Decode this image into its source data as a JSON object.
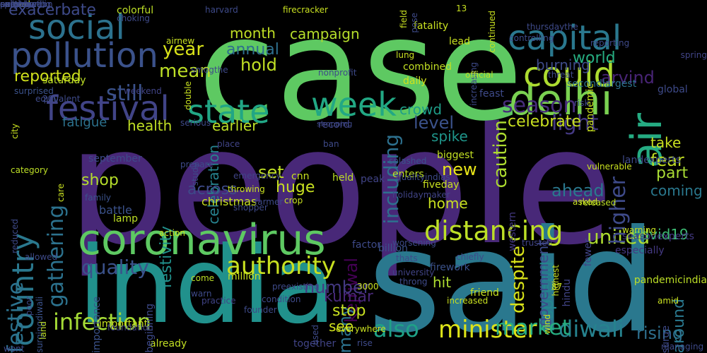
{
  "background": "#000000",
  "words": [
    {
      "text": "people",
      "color": "#482878"
    },
    {
      "text": "case",
      "color": "#5ec962"
    },
    {
      "text": "said",
      "color": "#2a788e"
    },
    {
      "text": "india",
      "color": "#21918c"
    },
    {
      "text": "coronavirus",
      "color": "#5ec962"
    },
    {
      "text": "pollution",
      "color": "#3b528b"
    },
    {
      "text": "social",
      "color": "#2c728e"
    },
    {
      "text": "festival",
      "color": "#414487"
    },
    {
      "text": "delhi",
      "color": "#7ad151"
    },
    {
      "text": "capital",
      "color": "#2a788e"
    },
    {
      "text": "could",
      "color": "#addc30"
    },
    {
      "text": "state",
      "color": "#21a685"
    },
    {
      "text": "week",
      "color": "#22a884"
    },
    {
      "text": "air",
      "color": "#25ab82"
    },
    {
      "text": "country",
      "color": "#2a788e"
    },
    {
      "text": "distancing",
      "color": "#bddf26"
    },
    {
      "text": "authority",
      "color": "#c8e020"
    },
    {
      "text": "minister",
      "color": "#dde318"
    },
    {
      "text": "infection",
      "color": "#a5db36"
    },
    {
      "text": "also",
      "color": "#1fa187"
    },
    {
      "text": "diwali",
      "color": "#26828e"
    },
    {
      "text": "market",
      "color": "#27ad81"
    },
    {
      "text": "festive",
      "color": "#2c728e"
    },
    {
      "text": "quality",
      "color": "#3b528b"
    },
    {
      "text": "united",
      "color": "#addc30"
    },
    {
      "text": "season",
      "color": "#472d7b"
    },
    {
      "text": "light",
      "color": "#443983"
    },
    {
      "text": "higher",
      "color": "#3e4a89"
    },
    {
      "text": "ahead",
      "color": "#2a788e"
    },
    {
      "text": "still",
      "color": "#3b528b"
    },
    {
      "text": "mean",
      "color": "#bddf26"
    },
    {
      "text": "year",
      "color": "#d8e219"
    },
    {
      "text": "world",
      "color": "#26ad81"
    },
    {
      "text": "arvind",
      "color": "#482475"
    },
    {
      "text": "month",
      "color": "#c0df25"
    },
    {
      "text": "campaign",
      "color": "#b5de2b"
    },
    {
      "text": "annual",
      "color": "#2e6f8e"
    },
    {
      "text": "hold",
      "color": "#c0df25"
    },
    {
      "text": "reported",
      "color": "#d0e11c"
    },
    {
      "text": "including",
      "color": "#2d708e"
    },
    {
      "text": "caution",
      "color": "#addc30"
    },
    {
      "text": "exacerbate",
      "color": "#3e4a89"
    },
    {
      "text": "crowd",
      "color": "#1f9e89"
    },
    {
      "text": "level",
      "color": "#3b528b"
    },
    {
      "text": "celebrate",
      "color": "#c8e020"
    },
    {
      "text": "burning",
      "color": "#3e4a89"
    },
    {
      "text": "celebration",
      "color": "#26828e"
    },
    {
      "text": "earlier",
      "color": "#bddf26"
    },
    {
      "text": "health",
      "color": "#c0df25"
    },
    {
      "text": "fatigue",
      "color": "#2c728e"
    },
    {
      "text": "gathering",
      "color": "#2c728e"
    },
    {
      "text": "spike",
      "color": "#1f968b"
    },
    {
      "text": "fear",
      "color": "#c2df23"
    },
    {
      "text": "take",
      "color": "#c8e020"
    },
    {
      "text": "part",
      "color": "#a8db34"
    },
    {
      "text": "set",
      "color": "#c0df25"
    },
    {
      "text": "new",
      "color": "#e7e419"
    },
    {
      "text": "despite",
      "color": "#d8e219"
    },
    {
      "text": "huge",
      "color": "#c8e020"
    },
    {
      "text": "across",
      "color": "#3e4a89"
    },
    {
      "text": "shop",
      "color": "#b5de2b"
    },
    {
      "text": "festivity",
      "color": "#21918c"
    },
    {
      "text": "coming",
      "color": "#2a788e"
    },
    {
      "text": "covid19",
      "color": "#3dbc74"
    },
    {
      "text": "home",
      "color": "#c8e020"
    },
    {
      "text": "spread",
      "color": "#24868e"
    },
    {
      "text": "kejriwal",
      "color": "#440154"
    },
    {
      "text": "number",
      "color": "#443983"
    },
    {
      "text": "kumar",
      "color": "#482878"
    },
    {
      "text": "many",
      "color": "#2c728e"
    },
    {
      "text": "hit",
      "color": "#addc30"
    },
    {
      "text": "stop",
      "color": "#c8e020"
    },
    {
      "text": "see",
      "color": "#d0e11c"
    },
    {
      "text": "rising",
      "color": "#2e6f8e"
    },
    {
      "text": "around",
      "color": "#2a788e"
    },
    {
      "text": "government",
      "color": "#3e4a89"
    },
    {
      "text": "christmas",
      "color": "#c8e020"
    },
    {
      "text": "battle",
      "color": "#3b528b"
    },
    {
      "text": "weekend",
      "color": "#414487"
    },
    {
      "text": "saturday",
      "color": "#bddf26"
    },
    {
      "text": "colorful",
      "color": "#bddf26"
    },
    {
      "text": "combined",
      "color": "#c2df23"
    },
    {
      "text": "fatality",
      "color": "#c8e020"
    },
    {
      "text": "daily",
      "color": "#d0e11c"
    },
    {
      "text": "lead",
      "color": "#c8e020"
    },
    {
      "text": "feast",
      "color": "#3e4a89"
    },
    {
      "text": "record",
      "color": "#414487"
    },
    {
      "text": "biggest",
      "color": "#c2df23"
    },
    {
      "text": "fiveday",
      "color": "#c8e020"
    },
    {
      "text": "enters",
      "color": "#bddf26"
    },
    {
      "text": "billion",
      "color": "#3b528b"
    },
    {
      "text": "factor",
      "color": "#3e4a89"
    },
    {
      "text": "firework",
      "color": "#3b528b"
    },
    {
      "text": "friend",
      "color": "#c8e020"
    },
    {
      "text": "million",
      "color": "#c8e020"
    },
    {
      "text": "together",
      "color": "#414487"
    },
    {
      "text": "already",
      "color": "#c2df23"
    },
    {
      "text": "important",
      "color": "#c8e020"
    },
    {
      "text": "importance",
      "color": "#3b528b"
    },
    {
      "text": "beginning",
      "color": "#3e4a89"
    },
    {
      "text": "september",
      "color": "#3e4a89"
    },
    {
      "text": "lamp",
      "color": "#bddf26"
    },
    {
      "text": "held",
      "color": "#bddf26"
    },
    {
      "text": "cnn",
      "color": "#c8e020"
    },
    {
      "text": "peak",
      "color": "#414487"
    },
    {
      "text": "western",
      "color": "#443983"
    },
    {
      "text": "secondlargest",
      "color": "#2c728e"
    },
    {
      "text": "global",
      "color": "#3e4a89"
    },
    {
      "text": "pandemic",
      "color": "#c8e020"
    },
    {
      "text": "landexperts",
      "color": "#3e4a89"
    },
    {
      "text": "seasonexperts",
      "color": "#443983"
    },
    {
      "text": "fewer",
      "color": "#414487"
    },
    {
      "text": "especially",
      "color": "#443983"
    },
    {
      "text": "hindu",
      "color": "#414487"
    },
    {
      "text": "pandemicindia",
      "color": "#bddf26"
    },
    {
      "text": "surge",
      "color": "#3e4a89"
    },
    {
      "text": "city",
      "color": "#c8e020"
    },
    {
      "text": "surprised",
      "color": "#3b528b"
    },
    {
      "text": "equivalent",
      "color": "#3e4a89"
    },
    {
      "text": "poor",
      "color": "#3e4a89"
    },
    {
      "text": "wont",
      "color": "#3e4a89"
    },
    {
      "text": "surgingdiwali",
      "color": "#3b528b"
    },
    {
      "text": "land",
      "color": "#bddf26"
    },
    {
      "text": "allowed",
      "color": "#3e4a89"
    },
    {
      "text": "reduced",
      "color": "#3e4a89"
    },
    {
      "text": "shopping",
      "color": "#3e4a89"
    },
    {
      "text": "splashed",
      "color": "#3b528b"
    },
    {
      "text": "qualityindias",
      "color": "#3e4a89"
    },
    {
      "text": "holidaymaker",
      "color": "#414487"
    },
    {
      "text": "chiefly",
      "color": "#3e4a89"
    },
    {
      "text": "trustee",
      "color": "#414487"
    },
    {
      "text": "warning",
      "color": "#c8e020"
    },
    {
      "text": "released",
      "color": "#bddf26"
    },
    {
      "text": "asked",
      "color": "#c8e020"
    },
    {
      "text": "prepare",
      "color": "#3e4a89"
    },
    {
      "text": "family",
      "color": "#3b528b"
    },
    {
      "text": "emergency",
      "color": "#414487"
    },
    {
      "text": "throwing",
      "color": "#c8e020"
    },
    {
      "text": "shopper",
      "color": "#3e4a89"
    },
    {
      "text": "crop",
      "color": "#c8e020"
    },
    {
      "text": "farmer",
      "color": "#3e4a89"
    },
    {
      "text": "ban",
      "color": "#3e4a89"
    },
    {
      "text": "place",
      "color": "#414487"
    },
    {
      "text": "serious",
      "color": "#3e4a89"
    },
    {
      "text": "action",
      "color": "#c8e020"
    },
    {
      "text": "come",
      "color": "#bddf26"
    },
    {
      "text": "warn",
      "color": "#3e4a89"
    },
    {
      "text": "preexisting",
      "color": "#3e4a89"
    },
    {
      "text": "condition",
      "color": "#3e4a89"
    },
    {
      "text": "founder",
      "color": "#3e4a89"
    },
    {
      "text": "foundation",
      "color": "#414487"
    },
    {
      "text": "practice",
      "color": "#414487"
    },
    {
      "text": "everywhere",
      "color": "#c8e020"
    },
    {
      "text": "rise",
      "color": "#3e4a89"
    },
    {
      "text": "used",
      "color": "#3e4a89"
    },
    {
      "text": "3000",
      "color": "#c8e020"
    },
    {
      "text": "increased",
      "color": "#c8e020"
    },
    {
      "text": "throng",
      "color": "#3e4a89"
    },
    {
      "text": "university",
      "color": "#414487"
    },
    {
      "text": "worsening",
      "color": "#3e4a89"
    },
    {
      "text": "thats",
      "color": "#3e4a89"
    },
    {
      "text": "87",
      "color": "#c8e020"
    },
    {
      "text": "wind",
      "color": "#c8e020"
    },
    {
      "text": "highest",
      "color": "#c8e020"
    },
    {
      "text": "amid",
      "color": "#c8e020"
    },
    {
      "text": "managing",
      "color": "#3e4a89"
    },
    {
      "text": "vulnerable",
      "color": "#c8e020"
    },
    {
      "text": "risk",
      "color": "#3e4a89"
    },
    {
      "text": "threat",
      "color": "#3e4a89"
    },
    {
      "text": "controlling",
      "color": "#3e4a89"
    },
    {
      "text": "reporting",
      "color": "#3e4a89"
    },
    {
      "text": "spring",
      "color": "#414487"
    },
    {
      "text": "thursdaythe",
      "color": "#3e4a89"
    },
    {
      "text": "13",
      "color": "#c8e020"
    },
    {
      "text": "continued",
      "color": "#c8e020"
    },
    {
      "text": "increasing",
      "color": "#3e4a89"
    },
    {
      "text": "official",
      "color": "#bddf26"
    },
    {
      "text": "nonprofit",
      "color": "#3e4a89"
    },
    {
      "text": "lung",
      "color": "#c8e020"
    },
    {
      "text": "pose",
      "color": "#3e4a89"
    },
    {
      "text": "firecracker",
      "color": "#c8e020"
    },
    {
      "text": "field",
      "color": "#c8e020"
    },
    {
      "text": "harvard",
      "color": "#3e4a89"
    },
    {
      "text": "choking",
      "color": "#3e4a89"
    },
    {
      "text": "airnew",
      "color": "#c8e020"
    },
    {
      "text": "200",
      "color": "#3e4a89"
    },
    {
      "text": "smogthe",
      "color": "#3e4a89"
    },
    {
      "text": "double",
      "color": "#c8e020"
    },
    {
      "text": "study",
      "color": "#3e4a89"
    },
    {
      "text": "care",
      "color": "#c8e020"
    },
    {
      "text": "category",
      "color": "#bddf26"
    },
    {
      "text": "caused",
      "color": "#c8e020"
    },
    {
      "text": "examined",
      "color": "#3e4a89"
    },
    {
      "text": "continue",
      "color": "#3e4a89"
    },
    {
      "text": "spikediwali",
      "color": "#3e4a89"
    },
    {
      "text": "neighboring",
      "color": "#3e4a89"
    },
    {
      "text": "construction",
      "color": "#3e4a89"
    },
    {
      "text": "putting",
      "color": "#3e4a89"
    }
  ]
}
